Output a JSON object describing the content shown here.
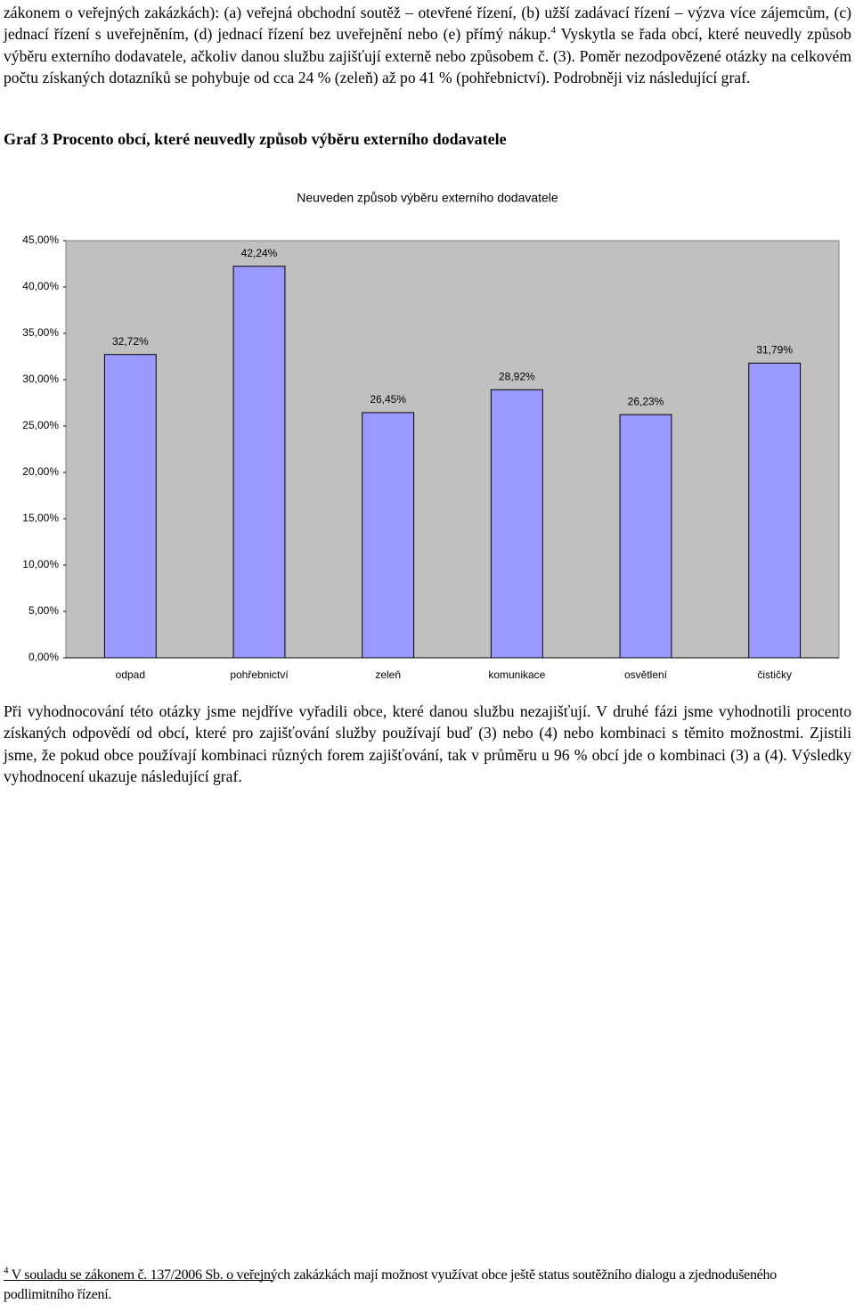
{
  "paragraphs": [
    {
      "text_before": "zákonem o veřejných zakázkách): (a) veřejná obchodní soutěž – otevřené řízení, (b) užší zadávací řízení – výzva více zájemcům, (c) jednací řízení s uveřejněním, (d) jednací řízení bez uveřejnění nebo (e) přímý nákup.",
      "footnote_ref": "4",
      "text_after": "Vyskytla se řada obcí, které neuvedly způsob výběru externího dodavatele, ačkoliv danou službu zajišťují externě nebo způsobem č. (3). Poměr nezodpovězené otázky na celkovém počtu získaných dotazníků se pohybuje od cca 24 % (zeleň) až po 41 % (pohřebnictví). Podrobněji viz následující graf."
    },
    {
      "text": "Při vyhodnocování této otázky jsme nejdříve vyřadili obce, které danou službu nezajišťují. V druhé fázi jsme vyhodnotili procento získaných odpovědí od obcí, které pro zajišťování služby používají buď (3) nebo (4) nebo kombinaci s těmito možnostmi. Zjistili jsme, že pokud obce používají kombinaci různých forem zajišťování, tak v průměru u 96 % obcí jde o kombinaci (3) a (4). Výsledky vyhodnocení ukazuje následující graf."
    }
  ],
  "caption": "Graf 3 Procento obcí, které neuvedly způsob výběru externího dodavatele",
  "chart_data": {
    "type": "bar",
    "title": "Neuveden způsob výběru externího dodavatele",
    "categories": [
      "odpad",
      "pohřebnictví",
      "zeleň",
      "komunikace",
      "osvětlení",
      "čističky"
    ],
    "values": [
      32.72,
      42.24,
      26.45,
      28.92,
      26.23,
      31.79
    ],
    "value_labels": [
      "32,72%",
      "42,24%",
      "26,45%",
      "28,92%",
      "26,23%",
      "31,79%"
    ],
    "color": "#9999ff",
    "plot_background": "#c0c0c0",
    "grid": false,
    "ylim": [
      0,
      45
    ],
    "yticks": [
      {
        "value": 0,
        "label": "0,00%"
      },
      {
        "value": 5,
        "label": "5,00%"
      },
      {
        "value": 10,
        "label": "10,00%"
      },
      {
        "value": 15,
        "label": "15,00%"
      },
      {
        "value": 20,
        "label": "20,00%"
      },
      {
        "value": 25,
        "label": "25,00%"
      },
      {
        "value": 30,
        "label": "30,00%"
      },
      {
        "value": 35,
        "label": "35,00%"
      },
      {
        "value": 40,
        "label": "40,00%"
      },
      {
        "value": 45,
        "label": "45,00%"
      }
    ]
  },
  "footnote": {
    "number": "4",
    "text": "V souladu se zákonem č. 137/2006 Sb. o veřejných zakázkách mají možnost využívat obce ještě status soutěžního dialogu a zjednodušeného podlimitního řízení."
  }
}
